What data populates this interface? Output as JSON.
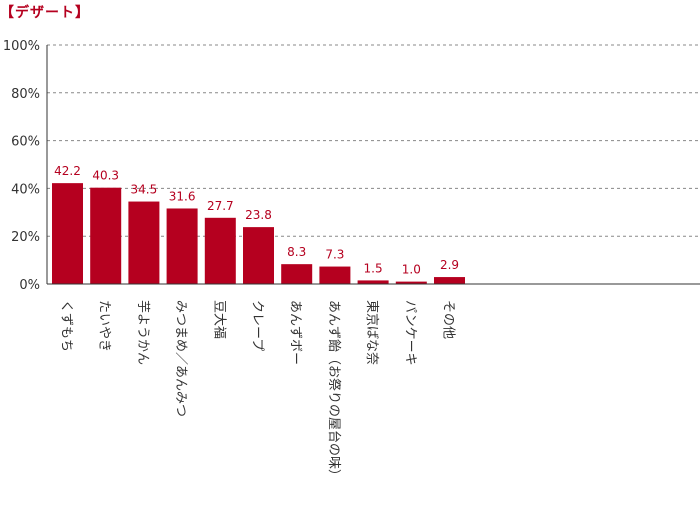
{
  "title": "【デザート】",
  "chart_data": {
    "type": "bar",
    "title": "【デザート】",
    "xlabel": "",
    "ylabel": "",
    "categories": [
      "くずもち",
      "たいやき",
      "芋ようかん",
      "みつまめ／あんみつ",
      "豆大福",
      "クレープ",
      "あんずボー",
      "あんず飴（お祭りの屋台の味）",
      "東京ばな奈",
      "パンケーキ",
      "その他"
    ],
    "values": [
      42.2,
      40.3,
      34.5,
      31.6,
      27.7,
      23.8,
      8.3,
      7.3,
      1.5,
      1.0,
      2.9
    ],
    "value_labels": [
      "42.2",
      "40.3",
      "34.5",
      "31.6",
      "27.7",
      "23.8",
      "8.3",
      "7.3",
      "1.5",
      "1.0",
      "2.9"
    ],
    "yticks": [
      0,
      20,
      40,
      60,
      80,
      100
    ],
    "ytick_labels": [
      "0%",
      "20%",
      "40%",
      "60%",
      "80%",
      "100%"
    ],
    "ylim": [
      0,
      100
    ],
    "grid": true,
    "legend": "none",
    "bar_color": "#b5001f"
  }
}
